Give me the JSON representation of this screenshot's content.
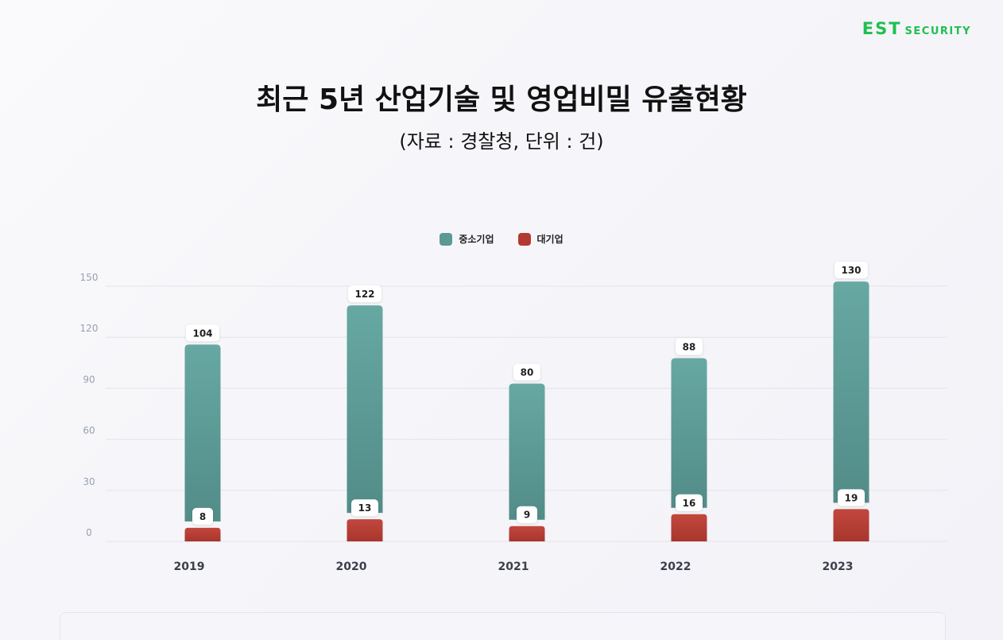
{
  "header": {
    "logo_main": "EST",
    "logo_sub": "SECURITY"
  },
  "chart_data": {
    "type": "bar",
    "title": "최근 5년 산업기술 및 영업비밀 유출현황",
    "subtitle": "(자료 : 경찰청, 단위 : 건)",
    "categories": [
      "2019",
      "2020",
      "2021",
      "2022",
      "2023"
    ],
    "series": [
      {
        "name": "중소기업",
        "values": [
          104,
          122,
          80,
          88,
          130
        ],
        "color": "#5a9994"
      },
      {
        "name": "대기업",
        "values": [
          8,
          13,
          9,
          16,
          19
        ],
        "color": "#b33a30"
      }
    ],
    "yticks": [
      0,
      30,
      60,
      90,
      120,
      150
    ],
    "ylim": [
      0,
      150
    ],
    "grid": true,
    "legend": "top-center"
  }
}
